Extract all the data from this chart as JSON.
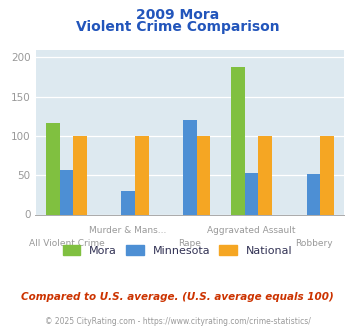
{
  "title_line1": "2009 Mora",
  "title_line2": "Violent Crime Comparison",
  "categories": [
    "All Violent Crime",
    "Murder & Mans...",
    "Rape",
    "Aggravated Assault",
    "Robbery"
  ],
  "cat_row": [
    1,
    0,
    1,
    0,
    1
  ],
  "series": {
    "Mora": [
      117,
      0,
      0,
      188,
      0
    ],
    "Minnesota": [
      57,
      30,
      120,
      53,
      52
    ],
    "National": [
      100,
      100,
      100,
      100,
      100
    ]
  },
  "colors": {
    "Mora": "#80c040",
    "Minnesota": "#4d8fd4",
    "National": "#f5a623"
  },
  "ylim": [
    0,
    210
  ],
  "yticks": [
    0,
    50,
    100,
    150,
    200
  ],
  "bar_width": 0.22,
  "plot_bg_color": "#dde9f0",
  "title_color": "#2255bb",
  "axis_label_color": "#999999",
  "footer_text": "Compared to U.S. average. (U.S. average equals 100)",
  "copyright_text": "© 2025 CityRating.com - https://www.cityrating.com/crime-statistics/",
  "footer_color": "#cc3300",
  "copyright_color": "#999999",
  "legend_label_color": "#333355"
}
